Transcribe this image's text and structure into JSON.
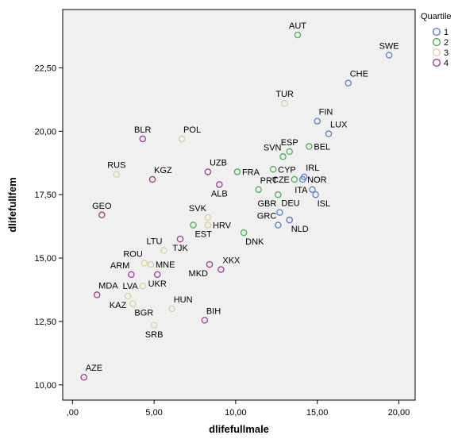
{
  "chart_data": {
    "type": "scatter",
    "xlabel": "dlifefullmale",
    "ylabel": "dlifefullfem",
    "xlim": [
      -0.6,
      21.0
    ],
    "ylim": [
      9.4,
      24.8
    ],
    "xticks": [
      0,
      5,
      10,
      15,
      20
    ],
    "xtick_labels": [
      ",00",
      "5,00",
      "10,00",
      "15,00",
      "20,00"
    ],
    "yticks": [
      10,
      12.5,
      15,
      17.5,
      20,
      22.5
    ],
    "ytick_labels": [
      "10,00",
      "12,50",
      "15,00",
      "17,50",
      "20,00",
      "22,50"
    ],
    "grid": false,
    "legend": {
      "title": "Quartile",
      "placement": "top-right",
      "entries": [
        {
          "label": "1",
          "color": "#5b7fc9"
        },
        {
          "label": "2",
          "color": "#4caf50"
        },
        {
          "label": "3",
          "color": "#d8d1a4"
        },
        {
          "label": "4",
          "color": "#9c3d8f"
        }
      ]
    },
    "points": [
      {
        "label": "AUT",
        "x": 13.8,
        "y": 23.8,
        "q": 2,
        "anchor": "a"
      },
      {
        "label": "SWE",
        "x": 19.4,
        "y": 23.0,
        "q": 1,
        "anchor": "a"
      },
      {
        "label": "CHE",
        "x": 16.9,
        "y": 21.9,
        "q": 1,
        "anchor": "ar"
      },
      {
        "label": "TUR",
        "x": 13.0,
        "y": 21.1,
        "q": 3,
        "anchor": "a"
      },
      {
        "label": "FIN",
        "x": 15.0,
        "y": 20.4,
        "q": 1,
        "anchor": "ar"
      },
      {
        "label": "LUX",
        "x": 15.7,
        "y": 19.9,
        "q": 1,
        "anchor": "ar"
      },
      {
        "label": "BLR",
        "x": 4.3,
        "y": 19.7,
        "q": 4,
        "anchor": "a"
      },
      {
        "label": "POL",
        "x": 6.7,
        "y": 19.7,
        "q": 3,
        "anchor": "ar"
      },
      {
        "label": "SVN",
        "x": 12.9,
        "y": 19.0,
        "q": 2,
        "anchor": "al"
      },
      {
        "label": "ESP",
        "x": 13.3,
        "y": 19.2,
        "q": 2,
        "anchor": "a"
      },
      {
        "label": "BEL",
        "x": 14.5,
        "y": 19.4,
        "q": 2,
        "anchor": "r"
      },
      {
        "label": "RUS",
        "x": 2.7,
        "y": 18.3,
        "q": 3,
        "anchor": "a"
      },
      {
        "label": "KGZ",
        "x": 4.9,
        "y": 18.1,
        "q": 4,
        "anchor": "ar"
      },
      {
        "label": "UZB",
        "x": 8.3,
        "y": 18.4,
        "q": 4,
        "anchor": "ar"
      },
      {
        "label": "FRA",
        "x": 10.1,
        "y": 18.4,
        "q": 2,
        "anchor": "r"
      },
      {
        "label": "CYP",
        "x": 12.3,
        "y": 18.5,
        "q": 2,
        "anchor": "r"
      },
      {
        "label": "IRL",
        "x": 14.2,
        "y": 18.2,
        "q": 1,
        "anchor": "ar"
      },
      {
        "label": "CZE",
        "x": 13.6,
        "y": 18.1,
        "q": 2,
        "anchor": "l"
      },
      {
        "label": "NOR",
        "x": 14.1,
        "y": 18.1,
        "q": 1,
        "anchor": "r"
      },
      {
        "label": "ALB",
        "x": 9.0,
        "y": 17.9,
        "q": 4,
        "anchor": "b"
      },
      {
        "label": "PRT",
        "x": 11.4,
        "y": 17.7,
        "q": 2,
        "anchor": "ar"
      },
      {
        "label": "ITA",
        "x": 14.7,
        "y": 17.7,
        "q": 1,
        "anchor": "l"
      },
      {
        "label": "ISL",
        "x": 14.9,
        "y": 17.5,
        "q": 1,
        "anchor": "br"
      },
      {
        "label": "GEO",
        "x": 1.8,
        "y": 16.7,
        "q": 4,
        "anchor": "a"
      },
      {
        "label": "GBR",
        "x": 12.6,
        "y": 17.5,
        "q": 2,
        "anchor": "bl"
      },
      {
        "label": "DEU",
        "x": 12.7,
        "y": 16.8,
        "q": 1,
        "anchor": "ar"
      },
      {
        "label": "SVK",
        "x": 8.3,
        "y": 16.6,
        "q": 3,
        "anchor": "al"
      },
      {
        "label": "HRV",
        "x": 8.3,
        "y": 16.3,
        "q": 3,
        "anchor": "r"
      },
      {
        "label": "GRC",
        "x": 12.6,
        "y": 16.3,
        "q": 1,
        "anchor": "al"
      },
      {
        "label": "LUX2",
        "x": 13.3,
        "y": 16.5,
        "q": 1,
        "anchor": "none"
      },
      {
        "label": "NLD",
        "x": 13.3,
        "y": 16.5,
        "q": 1,
        "anchor": "br"
      },
      {
        "label": "EST",
        "x": 7.4,
        "y": 16.3,
        "q": 2,
        "anchor": "br"
      },
      {
        "label": "DNK",
        "x": 10.5,
        "y": 16.0,
        "q": 2,
        "anchor": "br"
      },
      {
        "label": "LTU",
        "x": 5.6,
        "y": 15.3,
        "q": 3,
        "anchor": "al"
      },
      {
        "label": "TJK",
        "x": 6.6,
        "y": 15.75,
        "q": 4,
        "anchor": "b"
      },
      {
        "label": "ROU",
        "x": 4.4,
        "y": 14.8,
        "q": 3,
        "anchor": "al"
      },
      {
        "label": "MNE",
        "x": 4.8,
        "y": 14.75,
        "q": 3,
        "anchor": "r"
      },
      {
        "label": "XKX",
        "x": 9.1,
        "y": 14.55,
        "q": 4,
        "anchor": "ar"
      },
      {
        "label": "ARM",
        "x": 3.6,
        "y": 14.35,
        "q": 4,
        "anchor": "al"
      },
      {
        "label": "MKD",
        "x": 8.4,
        "y": 14.75,
        "q": 4,
        "anchor": "bl"
      },
      {
        "label": "UKR",
        "x": 5.2,
        "y": 14.35,
        "q": 4,
        "anchor": "b"
      },
      {
        "label": "LVA",
        "x": 4.3,
        "y": 13.9,
        "q": 3,
        "anchor": "l"
      },
      {
        "label": "MDA",
        "x": 1.5,
        "y": 13.55,
        "q": 4,
        "anchor": "ar"
      },
      {
        "label": "KAZ",
        "x": 3.4,
        "y": 13.5,
        "q": 3,
        "anchor": "bl"
      },
      {
        "label": "HUN",
        "x": 6.1,
        "y": 13.0,
        "q": 3,
        "anchor": "ar"
      },
      {
        "label": "BGR",
        "x": 3.7,
        "y": 13.2,
        "q": 3,
        "anchor": "br"
      },
      {
        "label": "BIH",
        "x": 8.1,
        "y": 12.55,
        "q": 4,
        "anchor": "ar"
      },
      {
        "label": "SRB",
        "x": 5.0,
        "y": 12.35,
        "q": 3,
        "anchor": "b"
      },
      {
        "label": "AZE",
        "x": 0.7,
        "y": 10.3,
        "q": 4,
        "anchor": "ar"
      }
    ]
  }
}
